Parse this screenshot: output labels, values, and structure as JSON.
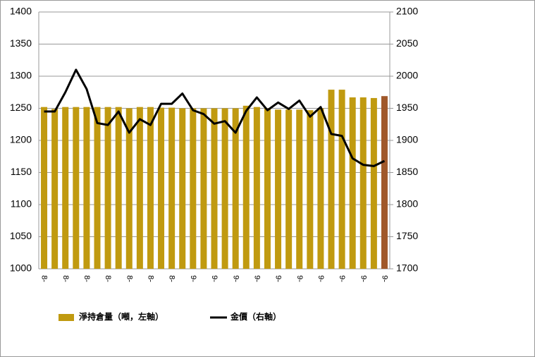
{
  "chart_data": {
    "type": "bar_line",
    "categories": [
      "8-",
      null,
      "8-",
      null,
      "8-",
      null,
      "8-",
      null,
      "8-",
      null,
      "8-",
      null,
      "8-",
      null,
      "9-",
      null,
      "9-",
      null,
      "9-",
      null,
      "9-",
      null,
      "9-",
      null,
      "9-",
      null,
      "9-",
      null,
      "9-",
      null,
      "9-",
      null,
      "9-"
    ],
    "series": [
      {
        "name": "淨持倉量（噸，左軸）",
        "type": "bar",
        "axis": "y",
        "color": "#c09a10",
        "colors": [
          "#c09a10",
          "#c09a10",
          "#c09a10",
          "#c09a10",
          "#c09a10",
          "#c09a10",
          "#c09a10",
          "#c09a10",
          "#c09a10",
          "#c09a10",
          "#c09a10",
          "#c09a10",
          "#c09a10",
          "#c09a10",
          "#c09a10",
          "#c09a10",
          "#c09a10",
          "#c09a10",
          "#c09a10",
          "#c09a10",
          "#c09a10",
          "#c09a10",
          "#c09a10",
          "#c09a10",
          "#c09a10",
          "#c09a10",
          "#c09a10",
          "#c09a10",
          "#c09a10",
          "#c09a10",
          "#c09a10",
          "#c09a10",
          "#a0582a"
        ],
        "values": [
          1252,
          1249,
          1252,
          1252,
          1252,
          1252,
          1252,
          1252,
          1250,
          1252,
          1252,
          1251,
          1251,
          1250,
          1250,
          1250,
          1250,
          1250,
          1250,
          1254,
          1252,
          1250,
          1248,
          1248,
          1248,
          1247,
          1250,
          1279,
          1279,
          1267,
          1267,
          1266,
          1269
        ]
      },
      {
        "name": "金價（右軸）",
        "type": "line",
        "axis": "y2",
        "color": "#000000",
        "values": [
          1945,
          1945,
          1975,
          2010,
          1980,
          1927,
          1924,
          1945,
          1912,
          1933,
          1924,
          1957,
          1957,
          1973,
          1947,
          1941,
          1926,
          1930,
          1912,
          1946,
          1967,
          1947,
          1959,
          1949,
          1962,
          1937,
          1952,
          1910,
          1907,
          1872,
          1862,
          1860,
          1868
        ]
      }
    ],
    "ylim": [
      1000,
      1400
    ],
    "yticks": [
      1000,
      1050,
      1100,
      1150,
      1200,
      1250,
      1300,
      1350,
      1400
    ],
    "y2lim": [
      1700,
      2100
    ],
    "y2ticks": [
      1700,
      1750,
      1800,
      1850,
      1900,
      1950,
      2000,
      2050,
      2100
    ],
    "grid": true
  }
}
